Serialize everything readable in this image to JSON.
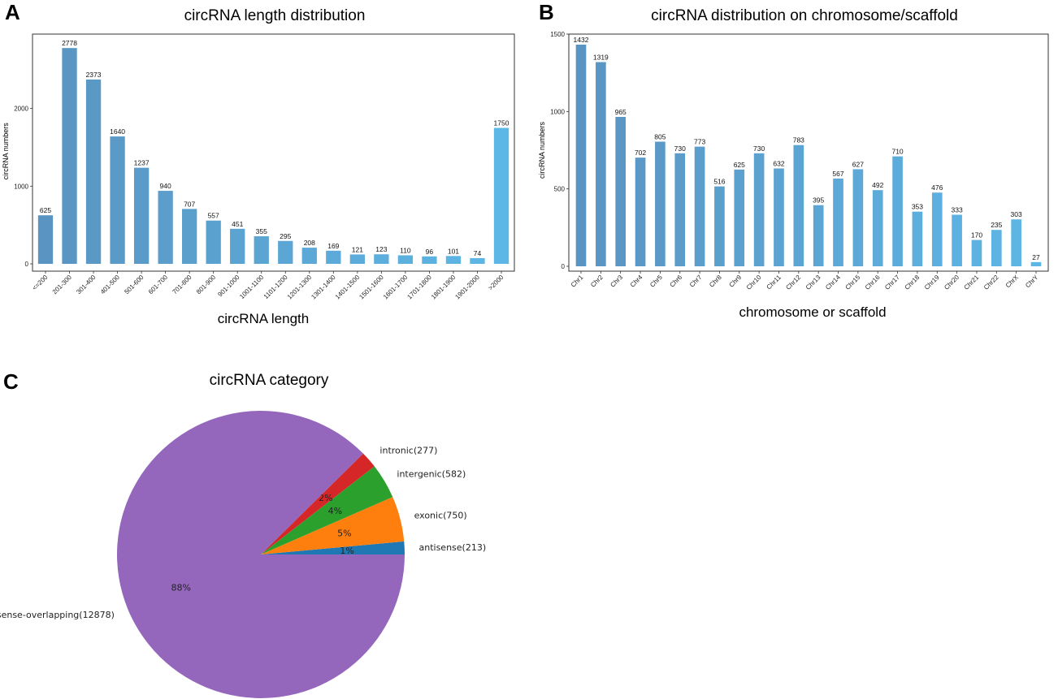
{
  "panels": {
    "A": {
      "letter": "A"
    },
    "B": {
      "letter": "B"
    },
    "C": {
      "letter": "C"
    }
  },
  "chart_data": [
    {
      "id": "A",
      "type": "bar",
      "title": "circRNA length distribution",
      "xlabel": "circRNA length",
      "ylabel": "circRNA numbers",
      "ylim": [
        0,
        2900
      ],
      "yticks": [
        0,
        1000,
        2000
      ],
      "categories": [
        "<=200",
        "201-300",
        "301-400",
        "401-500",
        "501-600",
        "601-700",
        "701-800",
        "801-900",
        "901-1000",
        "1001-1100",
        "1101-1200",
        "1201-1300",
        "1301-1400",
        "1401-1500",
        "1501-1600",
        "1601-1700",
        "1701-1800",
        "1801-1900",
        "1901-2000",
        ">2000"
      ],
      "values": [
        625,
        2778,
        2373,
        1640,
        1237,
        940,
        707,
        557,
        451,
        355,
        295,
        208,
        169,
        121,
        123,
        110,
        96,
        101,
        74,
        1750
      ],
      "color_start": "#5a94c2",
      "color_end": "#5db7e6"
    },
    {
      "id": "B",
      "type": "bar",
      "title": "circRNA distribution on chromosome/scaffold",
      "xlabel": "chromosome or scaffold",
      "ylabel": "circRNA numbers",
      "ylim": [
        0,
        1500
      ],
      "yticks": [
        0,
        500,
        1000,
        1500
      ],
      "categories": [
        "Chr1",
        "Chr2",
        "Chr3",
        "Chr4",
        "Chr5",
        "Chr6",
        "Chr7",
        "Chr8",
        "Chr9",
        "Chr10",
        "Chr11",
        "Chr12",
        "Chr13",
        "Chr14",
        "Chr15",
        "Chr16",
        "Chr17",
        "Chr18",
        "Chr19",
        "Chr20",
        "Chr21",
        "Chr22",
        "ChrX",
        "ChrY"
      ],
      "values": [
        1432,
        1319,
        965,
        702,
        805,
        730,
        773,
        516,
        625,
        730,
        632,
        783,
        395,
        567,
        627,
        492,
        710,
        353,
        476,
        333,
        170,
        235,
        303,
        27
      ],
      "color_start": "#5a94c2",
      "color_end": "#5db7e6"
    },
    {
      "id": "C",
      "type": "pie",
      "title": "circRNA category",
      "slices": [
        {
          "label": "antisense(213)",
          "value": 213,
          "pct": "1%",
          "color": "#1f77b4"
        },
        {
          "label": "exonic(750)",
          "value": 750,
          "pct": "5%",
          "color": "#ff7f0e"
        },
        {
          "label": "intergenic(582)",
          "value": 582,
          "pct": "4%",
          "color": "#2ca02c"
        },
        {
          "label": "intronic(277)",
          "value": 277,
          "pct": "2%",
          "color": "#d62728"
        },
        {
          "label": "sense-overlapping(12878)",
          "value": 12878,
          "pct": "88%",
          "color": "#9467bd"
        }
      ]
    }
  ]
}
